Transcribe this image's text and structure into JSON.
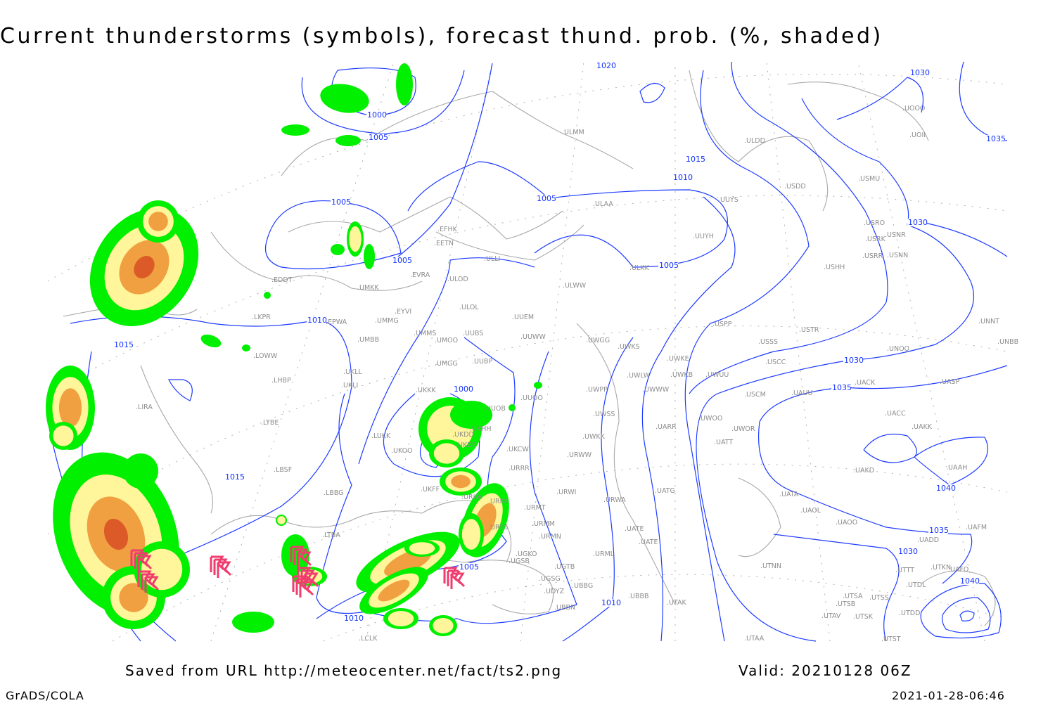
{
  "title": "Current thunderstorms (symbols), forecast thund. prob. (%, shaded)",
  "footer": {
    "source": "Saved from URL http://meteocenter.net/fact/ts2.png",
    "valid": "Valid: 20210128 06Z",
    "software": "GrADS/COLA",
    "timestamp": "2021-01-28-06:46"
  },
  "colors": {
    "isobar": "#1e3cff",
    "coastline": "#a8a8a8",
    "prob_low": "#00f000",
    "prob_mid": "#fff59a",
    "prob_high": "#f0a040",
    "prob_max": "#dc5a28",
    "storm_symbol": "#f03c6e"
  },
  "isobar_labels": [
    "1020",
    "1000",
    "1005",
    "1030",
    "1035",
    "1015",
    "1010",
    "1005",
    "1005",
    "1030",
    "1005",
    "1005",
    "1010",
    "1015",
    "1030",
    "1035",
    "1000",
    "1015",
    "1040",
    "1035",
    "1030",
    "1005",
    "1040",
    "1010",
    "1010"
  ],
  "stations": [
    "EFHK",
    "EETN",
    "ULLI",
    "EVRA",
    "ULOD",
    "EDDT",
    "UMKK",
    "ULWW",
    "EYVI",
    "ULOL",
    "UUEM",
    "LKPR",
    "EPWA",
    "UMMG",
    "UMMS",
    "UMOO",
    "UUBS",
    "UUWW",
    "UMBB",
    "UWGG",
    "UWKS",
    "UWKE",
    "LOWW",
    "UMGG",
    "UUBP",
    "UKLL",
    "UWLW",
    "UWUU",
    "UWKB",
    "LHBP",
    "UKLI",
    "UKKK",
    "UWPP",
    "UWWW",
    "UUOO",
    "UUOB",
    "LIRA",
    "UWSS",
    "LYBE",
    "UWOO",
    "UWOR",
    "UARR",
    "UATT",
    "LUKK",
    "UKHH",
    "UKDD",
    "UKDE",
    "UKOO",
    "UWKK",
    "UKCW",
    "URWW",
    "LBSF",
    "URRR",
    "UKFF",
    "URKA",
    "URWI",
    "UATG",
    "LBBG",
    "URKK",
    "URWA",
    "URMT",
    "URMM",
    "URSS",
    "UATE",
    "URMN",
    "UATE",
    "LTBA",
    "UGKO",
    "URML",
    "UGSB",
    "UGTB",
    "UGSG",
    "UBBG",
    "UDYZ",
    "UBBB",
    "UTAK",
    "UBBN",
    "LCLK",
    "UTAA",
    "ULMM",
    "ULAA",
    "ULDD",
    "USDD",
    "UUYS",
    "USMU",
    "UUYH",
    "USRO",
    "USRK",
    "USNR",
    "USRR",
    "USNN",
    "USHH",
    "ULKK",
    "USPP",
    "USTR",
    "USSS",
    "UNOO",
    "UNNT",
    "UNBB",
    "USCC",
    "UACK",
    "UASP",
    "USCM",
    "UAUU",
    "UACC",
    "UAKK",
    "UAKD",
    "UAAH",
    "UATA",
    "UAOL",
    "UAOO",
    "UAFM",
    "UADD",
    "UTNN",
    "UTTT",
    "UTKN",
    "UAFO",
    "UTDL",
    "UTSA",
    "UTSS",
    "UTSB",
    "UTAV",
    "UTSK",
    "UTDD",
    "UTST",
    "UOOO",
    "UOII"
  ]
}
